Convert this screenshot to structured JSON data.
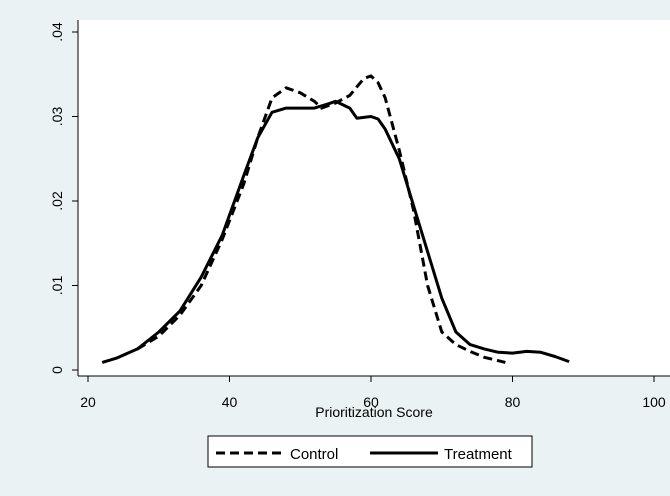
{
  "chart_data": {
    "type": "line",
    "title": "",
    "xlabel": "Prioritization Score",
    "ylabel": "",
    "xlim": [
      20,
      100
    ],
    "ylim": [
      0,
      0.04
    ],
    "x_ticks": [
      {
        "value": 20,
        "label": "20"
      },
      {
        "value": 40,
        "label": "40"
      },
      {
        "value": 60,
        "label": "60"
      },
      {
        "value": 80,
        "label": "80"
      },
      {
        "value": 100,
        "label": "100"
      }
    ],
    "y_ticks": [
      {
        "value": 0,
        "label": "0"
      },
      {
        "value": 0.01,
        "label": ".01"
      },
      {
        "value": 0.02,
        "label": ".02"
      },
      {
        "value": 0.03,
        "label": ".03"
      },
      {
        "value": 0.04,
        "label": ".04"
      }
    ],
    "grid": false,
    "legend_position": "bottom",
    "series": [
      {
        "name": "Control",
        "style": "dashed",
        "color": "#000000",
        "x": [
          27,
          30,
          33,
          36,
          39,
          42,
          44,
          46,
          48,
          50,
          52,
          53,
          55,
          57,
          58,
          59,
          60,
          61,
          62,
          64,
          66,
          68,
          70,
          72,
          74,
          76,
          78,
          79
        ],
        "y": [
          0.0025,
          0.004,
          0.0065,
          0.01,
          0.0155,
          0.022,
          0.0275,
          0.0322,
          0.0334,
          0.0328,
          0.0318,
          0.031,
          0.0316,
          0.0325,
          0.0335,
          0.0345,
          0.0348,
          0.034,
          0.0322,
          0.026,
          0.019,
          0.01,
          0.0045,
          0.003,
          0.0022,
          0.0015,
          0.0011,
          0.0009
        ]
      },
      {
        "name": "Treatment",
        "style": "solid",
        "color": "#000000",
        "x": [
          22,
          24,
          27,
          30,
          33,
          36,
          39,
          42,
          44,
          46,
          48,
          50,
          52,
          54,
          55,
          57,
          58,
          60,
          61,
          62,
          64,
          66,
          68,
          70,
          72,
          74,
          76,
          78,
          80,
          82,
          84,
          86,
          88
        ],
        "y": [
          0.0009,
          0.0014,
          0.0025,
          0.0045,
          0.007,
          0.011,
          0.016,
          0.023,
          0.0275,
          0.0305,
          0.031,
          0.031,
          0.031,
          0.0315,
          0.0318,
          0.031,
          0.0298,
          0.03,
          0.0297,
          0.0285,
          0.025,
          0.0195,
          0.014,
          0.0085,
          0.0045,
          0.003,
          0.0025,
          0.0021,
          0.002,
          0.0022,
          0.0021,
          0.0016,
          0.001
        ]
      }
    ]
  }
}
